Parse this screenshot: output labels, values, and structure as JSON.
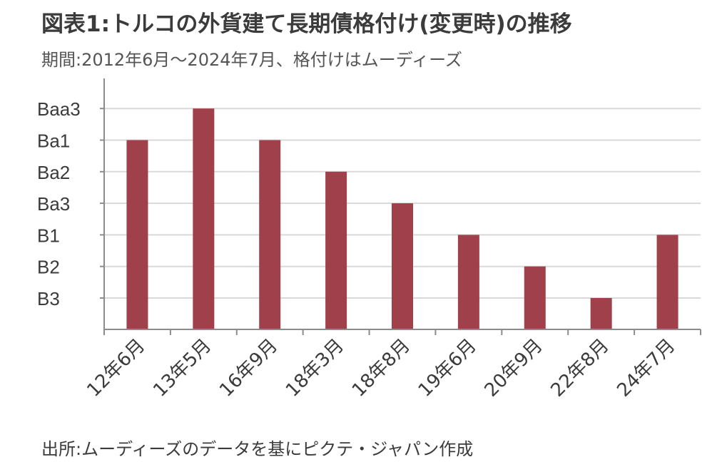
{
  "title": "図表1:トルコの外貨建て長期債格付け(変更時)の推移",
  "subtitle": "期間:2012年6月〜2024年7月、格付けはムーディーズ",
  "source": "出所:ムーディーズのデータを基にピクテ・ジャパン作成",
  "chart_data": {
    "type": "bar",
    "categories": [
      "12年6月",
      "13年5月",
      "16年9月",
      "18年3月",
      "18年8月",
      "19年6月",
      "20年9月",
      "22年8月",
      "24年7月"
    ],
    "rating_scale": [
      "B3",
      "B2",
      "B1",
      "Ba3",
      "Ba2",
      "Ba1",
      "Baa3"
    ],
    "values": [
      "Ba1",
      "Baa3",
      "Ba1",
      "Ba2",
      "Ba3",
      "B1",
      "B2",
      "B3",
      "B1"
    ],
    "bar_color": "#a0404a",
    "grid": true,
    "legend": "none"
  }
}
